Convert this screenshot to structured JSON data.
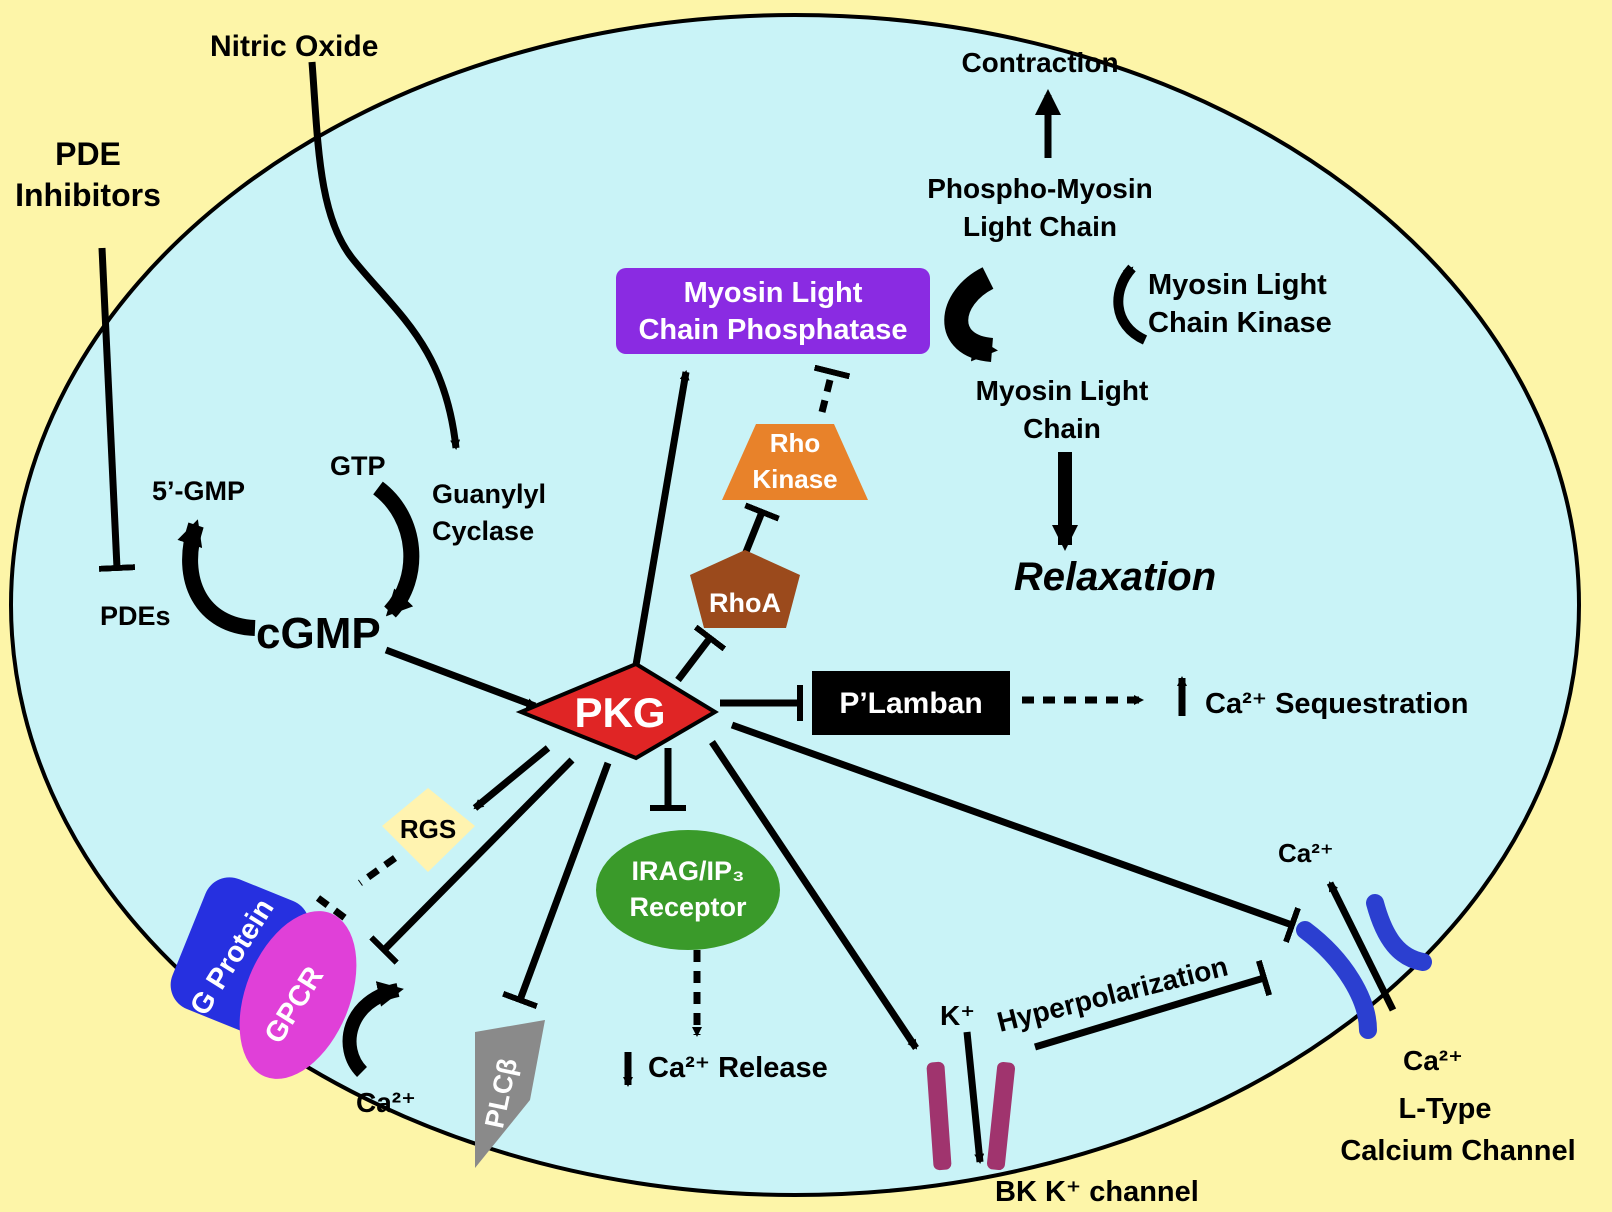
{
  "colors": {
    "background": "#fdf5a8",
    "cell": "#c9f3f7",
    "pkg": "#e02525",
    "mlcp": "#8a2be2",
    "rho_kinase": "#e8822a",
    "rhoa": "#9b4a1c",
    "irag": "#3a9a2a",
    "g_protein": "#2630e0",
    "gpcr": "#e040d8",
    "plcb": "#8a8a8a",
    "rgs": "#fff3b0",
    "bk_channel": "#a0346e",
    "ltype_channel": "#2b3fd0",
    "plamban": "#000000"
  },
  "icons": {
    "activation": "arrow-icon",
    "inhibition": "t-bar-icon",
    "cycle": "curved-arrow-icon"
  },
  "labels": {
    "nitric_oxide": "Nitric Oxide",
    "pde_inhibitors_1": "PDE",
    "pde_inhibitors_2": "Inhibitors",
    "pdes": "PDEs",
    "five_gmp": "5’-GMP",
    "gtp": "GTP",
    "guanylyl_1": "Guanylyl",
    "guanylyl_2": "Cyclase",
    "cgmp": "cGMP",
    "pkg": "PKG",
    "mlcp_1": "Myosin Light",
    "mlcp_2": "Chain Phosphatase",
    "rho_kinase_1": "Rho",
    "rho_kinase_2": "Kinase",
    "rhoa": "RhoA",
    "contraction": "Contraction",
    "phospho_mlc_1": "Phospho-Myosin",
    "phospho_mlc_2": "Light Chain",
    "mlck_1": "Myosin Light",
    "mlck_2": "Chain Kinase",
    "mlc_1": "Myosin Light",
    "mlc_2": "Chain",
    "relaxation": "Relaxation",
    "plamban": "P’Lamban",
    "ca_sequestration": "Ca²⁺ Sequestration",
    "rgs": "RGS",
    "irag_1": "IRAG/IP₃",
    "irag_2": "Receptor",
    "ca_release": "Ca²⁺ Release",
    "g_protein": "G Protein",
    "gpcr": "GPCR",
    "ca_gpcr": "Ca²⁺",
    "plcb": "PLCβ",
    "k_ion": "K⁺",
    "hyperpolarization": "Hyperpolarization",
    "bk_channel": "BK K⁺ channel",
    "ca_top": "Ca²⁺",
    "ca_bottom": "Ca²⁺",
    "ltype_1": "L-Type",
    "ltype_2": "Calcium Channel"
  }
}
